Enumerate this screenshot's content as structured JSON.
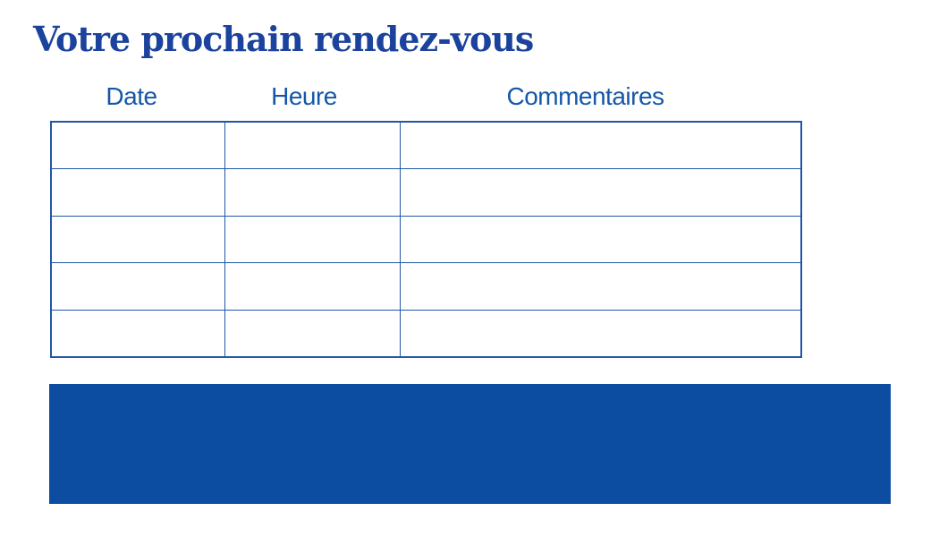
{
  "document": {
    "title": "Votre prochain rendez-vous"
  },
  "appointments_table": {
    "columns": [
      {
        "label": "Date"
      },
      {
        "label": "Heure"
      },
      {
        "label": "Commentaires"
      }
    ],
    "rows": [
      [
        "",
        "",
        ""
      ],
      [
        "",
        "",
        ""
      ],
      [
        "",
        "",
        ""
      ],
      [
        "",
        "",
        ""
      ],
      [
        "",
        "",
        ""
      ]
    ]
  },
  "footer_band": {
    "text": ""
  },
  "colors": {
    "title_blue": "#1b429c",
    "header_blue": "#1457a9",
    "table_border_blue": "#2156a6",
    "band_blue": "#0c4da2"
  }
}
